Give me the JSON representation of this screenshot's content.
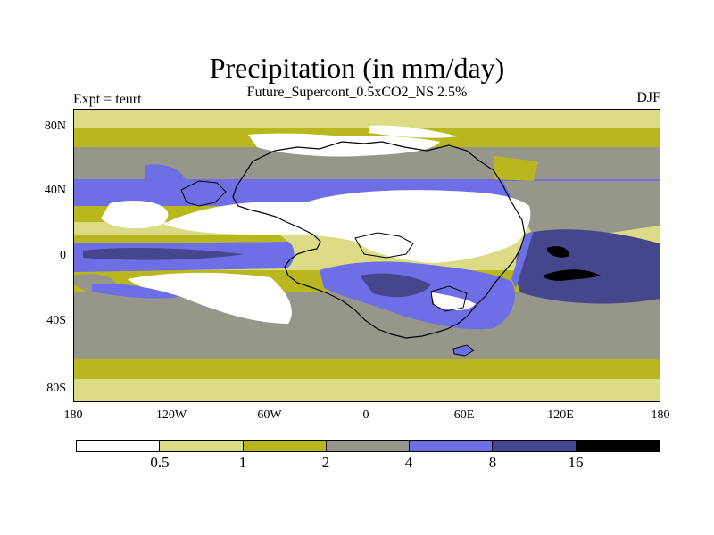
{
  "title": "Precipitation (in mm/day)",
  "subtitle": "Future_Supercont_0.5xCO2_NS 2.5%",
  "left_label": "Expt = teurt",
  "right_label": "DJF",
  "y_ticks": [
    "80N",
    "40N",
    "0",
    "40S",
    "80S"
  ],
  "x_ticks": [
    "180",
    "120W",
    "60W",
    "0",
    "60E",
    "120E",
    "180"
  ],
  "colorbar": {
    "levels": [
      "0.5",
      "1",
      "2",
      "4",
      "8",
      "16"
    ],
    "colors": [
      "#ffffff",
      "#dcdc86",
      "#b8b81e",
      "#96968a",
      "#6e6ee6",
      "#46468c",
      "#000000"
    ]
  },
  "colors": {
    "dry": "#ffffff",
    "band_0_5": "#dcdc86",
    "band_1": "#b8b81e",
    "band_2": "#96968a",
    "band_4": "#6e6ee6",
    "band_8": "#46468c",
    "band_16": "#000000"
  }
}
